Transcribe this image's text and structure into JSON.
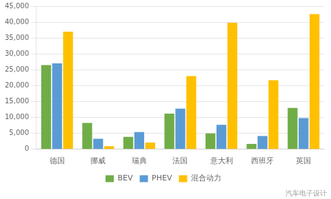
{
  "chart_data": {
    "type": "bar",
    "categories": [
      "德国",
      "挪威",
      "瑞典",
      "法国",
      "意大利",
      "西班牙",
      "英国"
    ],
    "series": [
      {
        "name": "BEV",
        "color": "#70ad47",
        "values": [
          26500,
          8300,
          3900,
          11200,
          5000,
          1700,
          13000
        ]
      },
      {
        "name": "PHEV",
        "color": "#5b9bd5",
        "values": [
          27000,
          3300,
          5400,
          12800,
          7700,
          4200,
          9800
        ]
      },
      {
        "name": "混合动力",
        "color": "#ffc000",
        "values": [
          37000,
          1000,
          2100,
          23000,
          39800,
          21700,
          42500
        ]
      }
    ],
    "ylim": [
      0,
      45000
    ],
    "yticks": [
      0,
      {
        "value": 5000,
        "label": "5,000"
      },
      {
        "value": 10000,
        "label": "10,000"
      },
      {
        "value": 15000,
        "label": "15,000"
      },
      {
        "value": 20000,
        "label": "20,000"
      },
      {
        "value": 25000,
        "label": "25,000"
      },
      {
        "value": 30000,
        "label": "30,000"
      },
      {
        "value": 35000,
        "label": "35,000"
      },
      {
        "value": 40000,
        "label": "40,000"
      },
      {
        "value": 45000,
        "label": "45,000"
      }
    ],
    "grid": true,
    "legend": "bottom",
    "annotations": [
      "汽车电子设计"
    ]
  }
}
